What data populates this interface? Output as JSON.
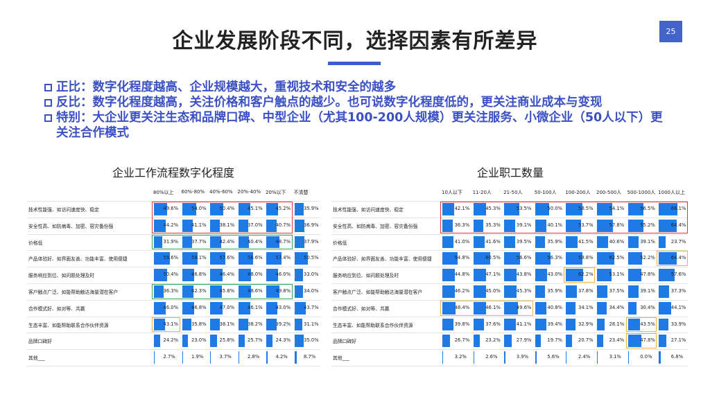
{
  "title": "企业发展阶段不同，选择因素有所差异",
  "page_number": "25",
  "bullets": [
    "正比：数字化程度越高、企业规模越大，重视技术和安全的越多",
    "反比：数字化程度越高，关注价格和客户触点的越少。也可说数字化程度低的，更关注商业成本与变现",
    "特别：大企业更关注生态和品牌口碑、中型企业（尤其100-200人规模）更关注服务、小微企业（50人以下）更关注合作模式"
  ],
  "colors": {
    "bar": "#1e7be6",
    "red_box": "#e03535",
    "green_box": "#3aa35a",
    "orange_box": "#f0b43c",
    "accent": "#3b50c4"
  },
  "table1": {
    "title": "企业工作流程数字化程度",
    "columns": [
      "80%以上",
      "60%-80%",
      "40%-60%",
      "20%-40%",
      "20%以下",
      "不清楚"
    ],
    "rows": [
      {
        "label": "技术性能强、如访问速度快、稳定",
        "values": [
          49.6,
          54.0,
          50.4,
          45.1,
          45.2,
          35.9
        ]
      },
      {
        "label": "安全性高、如防病毒、加密、容灾备份强",
        "values": [
          44.2,
          41.1,
          38.1,
          37.0,
          40.7,
          36.9
        ]
      },
      {
        "label": "价格低",
        "values": [
          31.9,
          37.7,
          42.4,
          40.4,
          48.7,
          37.9
        ]
      },
      {
        "label": "产品体验好、如界面友善、功能丰富、使用便捷",
        "values": [
          59.6,
          58.1,
          57.6,
          56.6,
          57.4,
          50.5
        ]
      },
      {
        "label": "服务响应到位、如问题处理及时",
        "values": [
          50.4,
          46.8,
          46.4,
          48.0,
          46.0,
          33.0
        ]
      },
      {
        "label": "客户触点广泛、如能帮助触达海量潜在客户",
        "values": [
          36.3,
          42.3,
          45.8,
          48.6,
          49.8,
          34.0
        ]
      },
      {
        "label": "合作模式好、如对等、共赢",
        "values": [
          46.0,
          46.8,
          47.0,
          46.1,
          43.0,
          43.7
        ]
      },
      {
        "label": "生态丰富、如能帮助联系合作伙伴资源",
        "values": [
          43.1,
          35.8,
          38.1,
          38.2,
          39.2,
          31.1
        ]
      },
      {
        "label": "品牌口碑好",
        "values": [
          24.2,
          23.0,
          25.8,
          25.7,
          24.3,
          35.0
        ]
      },
      {
        "label": "其他___",
        "values": [
          2.7,
          1.9,
          3.7,
          2.8,
          4.2,
          8.7
        ]
      }
    ],
    "display": [
      [
        "49.6%",
        "54.0%",
        "50.4%",
        "45.1%",
        "45.2%",
        "35.9%"
      ],
      [
        "44.2%",
        "41.1%",
        "38.1%",
        "37.0%",
        "40.7%",
        "36.9%"
      ],
      [
        "31.9%",
        "37.7%",
        "42.4%",
        "40.4%",
        "48.7%",
        "37.9%"
      ],
      [
        "59.6%",
        "58.1%",
        "57.6%",
        "56.6%",
        "57.4%",
        "50.5%"
      ],
      [
        "50.4%",
        "46.8%",
        "46.4%",
        "48.0%",
        "46.0%",
        "33.0%"
      ],
      [
        "36.3%",
        "42.3%",
        "45.8%",
        "48.6%",
        "49.8%",
        "34.0%"
      ],
      [
        "46.0%",
        "46.8%",
        "47.0%",
        "46.1%",
        "43.0%",
        "43.7%"
      ],
      [
        "43.1%",
        "35.8%",
        "38.1%",
        "38.2%",
        "39.2%",
        "31.1%"
      ],
      [
        "24.2%",
        "23.0%",
        "25.8%",
        "25.7%",
        "24.3%",
        "35.0%"
      ],
      [
        "2.7%",
        "1.9%",
        "3.7%",
        "2.8%",
        "4.2%",
        "8.7%"
      ]
    ],
    "highlights": [
      {
        "color": "red",
        "rows": [
          0,
          1
        ],
        "cols": [
          0,
          4
        ]
      },
      {
        "color": "green",
        "rows": [
          2,
          2
        ],
        "cols": [
          0,
          4
        ]
      },
      {
        "color": "green",
        "rows": [
          5,
          5
        ],
        "cols": [
          0,
          4
        ]
      },
      {
        "color": "orange",
        "rows": [
          7,
          7
        ],
        "cols": [
          0,
          0
        ]
      }
    ]
  },
  "table2": {
    "title": "企业职工数量",
    "columns": [
      "10人以下",
      "11-20人",
      "21-50人",
      "50-100人",
      "100-200人",
      "200-500人",
      "500-1000人",
      "1000人以上"
    ],
    "rows": [
      {
        "label": "技术性能强、如访问速度快、稳定",
        "values": [
          42.1,
          45.3,
          53.5,
          50.0,
          58.5,
          54.1,
          56.5,
          66.1
        ]
      },
      {
        "label": "安全性高、如防病毒、加密、容灾备份强",
        "values": [
          36.3,
          35.3,
          39.1,
          40.1,
          53.7,
          57.8,
          55.2,
          64.4
        ]
      },
      {
        "label": "价格低",
        "values": [
          41.0,
          41.6,
          39.5,
          35.9,
          41.5,
          40.6,
          39.1,
          23.7
        ]
      },
      {
        "label": "产品体验好、如界面友善、功能丰富、使用便捷",
        "values": [
          54.8,
          60.5,
          56.6,
          56.3,
          59.8,
          62.5,
          52.2,
          64.4
        ]
      },
      {
        "label": "服务响应到位、如问题处理及时",
        "values": [
          44.8,
          47.1,
          43.8,
          43.0,
          62.2,
          53.1,
          47.8,
          57.6
        ]
      },
      {
        "label": "客户触点广泛、如能帮助触达海量潜在客户",
        "values": [
          46.2,
          45.0,
          45.3,
          35.9,
          37.8,
          37.5,
          39.1,
          37.3
        ]
      },
      {
        "label": "合作模式好、如对等、共赢",
        "values": [
          48.4,
          46.1,
          49.6,
          40.8,
          34.1,
          34.4,
          30.4,
          44.1
        ]
      },
      {
        "label": "生态丰富、如能帮助联系合作伙伴资源",
        "values": [
          39.8,
          37.6,
          41.1,
          39.4,
          32.9,
          28.1,
          43.5,
          33.9
        ]
      },
      {
        "label": "品牌口碑好",
        "values": [
          26.7,
          23.2,
          27.9,
          19.7,
          20.7,
          23.4,
          47.8,
          27.1
        ]
      },
      {
        "label": "其他___",
        "values": [
          3.2,
          2.6,
          3.9,
          5.6,
          2.4,
          3.1,
          0.0,
          6.8
        ]
      }
    ],
    "display": [
      [
        "42.1%",
        "45.3%",
        "53.5%",
        "50.0%",
        "58.5%",
        "54.1%",
        "56.5%",
        "66.1%"
      ],
      [
        "36.3%",
        "35.3%",
        "39.1%",
        "40.1%",
        "53.7%",
        "57.8%",
        "55.2%",
        "64.4%"
      ],
      [
        "41.0%",
        "41.6%",
        "39.5%",
        "35.9%",
        "41.5%",
        "40.6%",
        "39.1%",
        "23.7%"
      ],
      [
        "54.8%",
        "60.5%",
        "56.6%",
        "56.3%",
        "59.8%",
        "62.5%",
        "52.2%",
        "64.4%"
      ],
      [
        "44.8%",
        "47.1%",
        "43.8%",
        "43.0%",
        "62.2%",
        "53.1%",
        "47.8%",
        "57.6%"
      ],
      [
        "46.2%",
        "45.0%",
        "45.3%",
        "35.9%",
        "37.8%",
        "37.5%",
        "39.1%",
        "37.3%"
      ],
      [
        "48.4%",
        "46.1%",
        "49.6%",
        "40.8%",
        "34.1%",
        "34.4%",
        "30.4%",
        "44.1%"
      ],
      [
        "39.8%",
        "37.6%",
        "41.1%",
        "39.4%",
        "32.9%",
        "28.1%",
        "43.5%",
        "33.9%"
      ],
      [
        "26.7%",
        "23.2%",
        "27.9%",
        "19.7%",
        "20.7%",
        "23.4%",
        "47.8%",
        "27.1%"
      ],
      [
        "3.2%",
        "2.6%",
        "3.9%",
        "5.6%",
        "2.4%",
        "3.1%",
        "0.0%",
        "6.8%"
      ]
    ],
    "highlights": [
      {
        "color": "red",
        "rows": [
          0,
          1
        ],
        "cols": [
          0,
          7
        ]
      },
      {
        "color": "orange",
        "rows": [
          3,
          3
        ],
        "cols": [
          7,
          7
        ]
      },
      {
        "color": "orange",
        "rows": [
          4,
          4
        ],
        "cols": [
          4,
          4
        ]
      },
      {
        "color": "orange",
        "rows": [
          6,
          6
        ],
        "cols": [
          0,
          2
        ]
      },
      {
        "color": "orange",
        "rows": [
          7,
          7
        ],
        "cols": [
          6,
          6
        ]
      },
      {
        "color": "orange",
        "rows": [
          8,
          8
        ],
        "cols": [
          6,
          6
        ]
      }
    ]
  }
}
